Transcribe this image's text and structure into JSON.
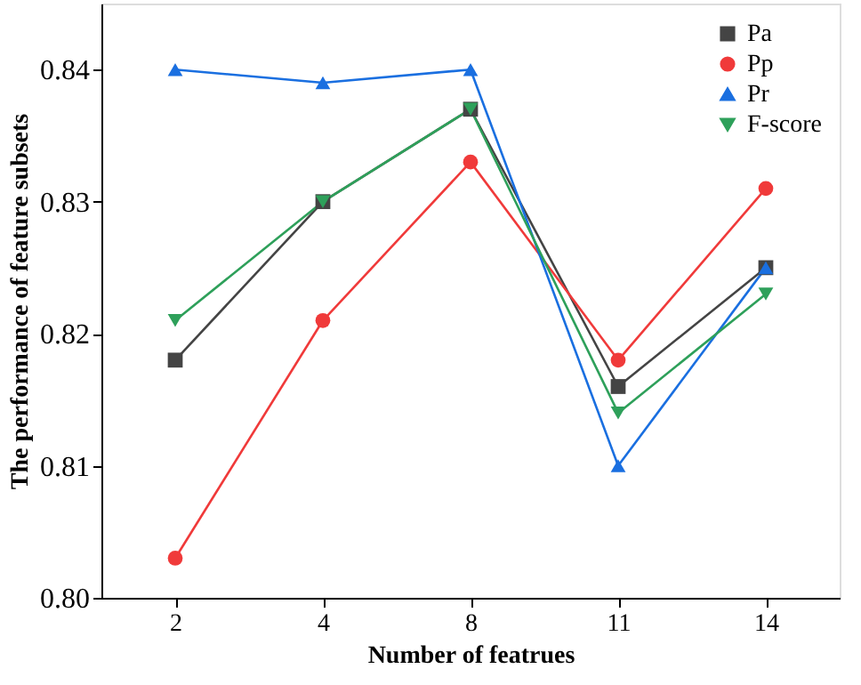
{
  "chart_data": {
    "type": "line",
    "xlabel": "Number of featrues",
    "ylabel": "The performance of feature subsets",
    "categories": [
      "2",
      "4",
      "8",
      "11",
      "14"
    ],
    "series": [
      {
        "name": "Pa",
        "color": "#444444",
        "marker": "square",
        "values": [
          0.818,
          0.83,
          0.837,
          0.816,
          0.825
        ]
      },
      {
        "name": "Pp",
        "color": "#f03a3a",
        "marker": "circle",
        "values": [
          0.803,
          0.821,
          0.833,
          0.818,
          0.831
        ]
      },
      {
        "name": "Pr",
        "color": "#1a6fe0",
        "marker": "triangle",
        "values": [
          0.84,
          0.839,
          0.84,
          0.81,
          0.825
        ]
      },
      {
        "name": "F-score",
        "color": "#2ea05a",
        "marker": "triangle-down",
        "values": [
          0.821,
          0.83,
          0.837,
          0.814,
          0.823
        ]
      }
    ],
    "ylim": [
      0.8,
      0.845
    ],
    "yticks": [
      {
        "value": 0.8,
        "label": "0.80"
      },
      0.81,
      0.82,
      0.83,
      0.84
    ],
    "grid": false,
    "legend": "top right",
    "line_style": "solid"
  }
}
